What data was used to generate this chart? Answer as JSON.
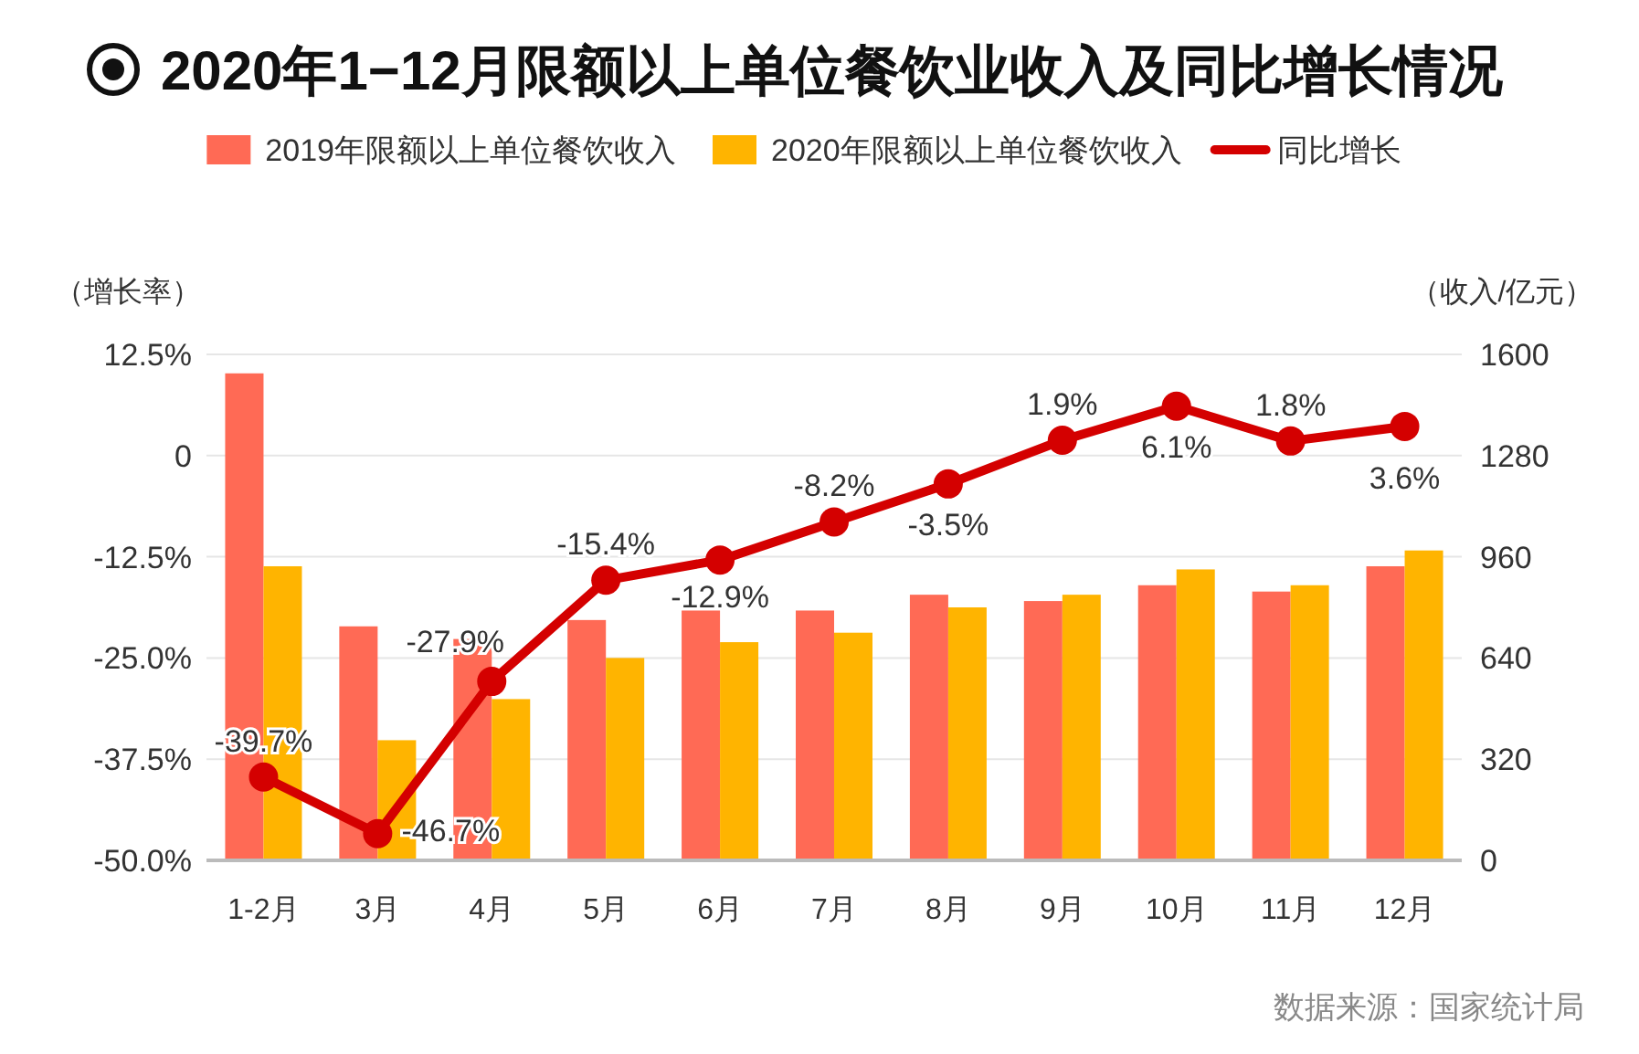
{
  "chart_data": {
    "type": "bar",
    "title": "2020年1−12月限额以上单位餐饮业收入及同比增长情况",
    "ylabel": "（增长率）",
    "y2label": "（收入/亿元）",
    "categories": [
      "1-2月",
      "3月",
      "4月",
      "5月",
      "6月",
      "7月",
      "8月",
      "9月",
      "10月",
      "11月",
      "12月"
    ],
    "series": [
      {
        "name": "2019年限额以上单位餐饮收入",
        "axis": "y2",
        "color": "#ff6a55",
        "values": [
          1540,
          740,
          700,
          760,
          790,
          790,
          840,
          820,
          870,
          850,
          930
        ]
      },
      {
        "name": "2020年限额以上单位餐饮收入",
        "axis": "y2",
        "color": "#ffb400",
        "values": [
          930,
          380,
          510,
          640,
          690,
          720,
          800,
          840,
          920,
          870,
          980
        ]
      },
      {
        "name": "同比增长",
        "type": "line",
        "axis": "y",
        "color": "#d40000",
        "marker": "circle",
        "values": [
          -39.7,
          -46.7,
          -27.9,
          -15.4,
          -12.9,
          -8.2,
          -3.5,
          1.9,
          6.1,
          1.8,
          3.6
        ],
        "value_labels": [
          "-39.7%",
          "-46.7%",
          "-27.9%",
          "-15.4%",
          "-12.9%",
          "-8.2%",
          "-3.5%",
          "1.9%",
          "6.1%",
          "1.8%",
          "3.6%"
        ]
      }
    ],
    "ylim": [
      -50,
      12.5
    ],
    "yticks": [
      {
        "value": -50,
        "label": "-50.0%"
      },
      {
        "value": -37.5,
        "label": "-37.5%"
      },
      {
        "value": -25,
        "label": "-25.0%"
      },
      {
        "value": -12.5,
        "label": "-12.5%"
      },
      0,
      {
        "value": 12.5,
        "label": "12.5%"
      }
    ],
    "y2lim": [
      0,
      1600
    ],
    "y2ticks": [
      0,
      320,
      640,
      960,
      1280,
      1600
    ],
    "grid": "y",
    "legend": "top",
    "annotations": [
      "数据来源：国家统计局"
    ]
  }
}
